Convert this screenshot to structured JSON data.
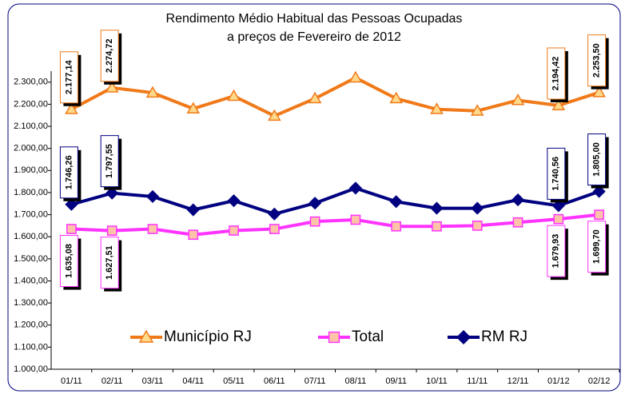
{
  "chart_data": {
    "type": "line",
    "title": "Rendimento Médio Habitual das Pessoas Ocupadas",
    "subtitle": "a preços de Fevereiro de 2012",
    "categories": [
      "01/11",
      "02/11",
      "03/11",
      "04/11",
      "05/11",
      "06/11",
      "07/11",
      "08/11",
      "09/11",
      "10/11",
      "11/11",
      "12/11",
      "01/12",
      "02/12"
    ],
    "ylim": [
      1000,
      2350
    ],
    "yticks": [
      {
        "value": 1000,
        "label": "1.000,00"
      },
      {
        "value": 1100,
        "label": "1.100,00"
      },
      {
        "value": 1200,
        "label": "1.200,00"
      },
      {
        "value": 1300,
        "label": "1.300,00"
      },
      {
        "value": 1400,
        "label": "1.400,00"
      },
      {
        "value": 1500,
        "label": "1.500,00"
      },
      {
        "value": 1600,
        "label": "1.600,00"
      },
      {
        "value": 1700,
        "label": "1.700,00"
      },
      {
        "value": 1800,
        "label": "1.800,00"
      },
      {
        "value": 1900,
        "label": "1.900,00"
      },
      {
        "value": 2000,
        "label": "2.000,00"
      },
      {
        "value": 2100,
        "label": "2.100,00"
      },
      {
        "value": 2200,
        "label": "2.200,00"
      },
      {
        "value": 2300,
        "label": "2.300,00"
      }
    ],
    "grid": false,
    "legend": "bottom",
    "series": [
      {
        "name": "Município RJ",
        "color": "#f07a1a",
        "marker": "triangle",
        "marker_color": "#ffd98a",
        "values": [
          2177.14,
          2274.72,
          2252,
          2180,
          2237,
          2147,
          2226,
          2320,
          2226,
          2177,
          2170,
          2218,
          2194.42,
          2253.5
        ],
        "value_labels": [
          "2.177,14",
          "2.274,72",
          null,
          null,
          null,
          null,
          null,
          null,
          null,
          null,
          null,
          null,
          "2.194,42",
          "2.253,50"
        ]
      },
      {
        "name": "Total",
        "color": "#ff33ff",
        "marker": "square",
        "marker_color": "#ffc4a8",
        "values": [
          1635.08,
          1627.51,
          1635,
          1609,
          1628,
          1635,
          1669,
          1677,
          1647,
          1647,
          1650,
          1665,
          1679.93,
          1699.7
        ],
        "value_labels": [
          "1.635,08",
          "1.627,51",
          null,
          null,
          null,
          null,
          null,
          null,
          null,
          null,
          null,
          null,
          "1.679,93",
          "1.699,70"
        ]
      },
      {
        "name": "RM RJ",
        "color": "#000080",
        "marker": "diamond",
        "marker_color": "#000080",
        "values": [
          1746.26,
          1797.55,
          1782,
          1722,
          1763,
          1703,
          1752,
          1820,
          1759,
          1729,
          1729,
          1767,
          1740.56,
          1805.0
        ],
        "value_labels": [
          "1.746,26",
          "1.797,55",
          null,
          null,
          null,
          null,
          null,
          null,
          null,
          null,
          null,
          null,
          "1.740,56",
          "1.805,00"
        ]
      }
    ]
  }
}
